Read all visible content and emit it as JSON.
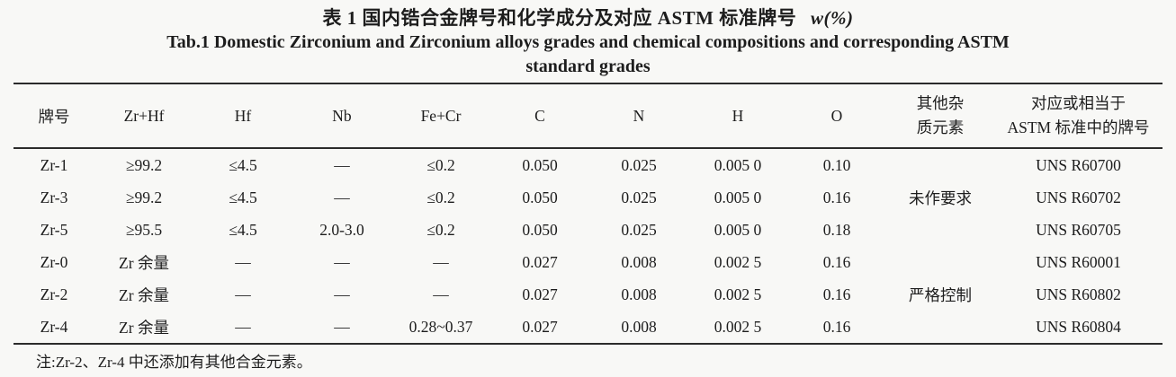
{
  "titles": {
    "chinese": "表 1 国内锆合金牌号和化学成分及对应 ASTM 标准牌号",
    "unit": "w(%)",
    "english_line1": "Tab.1 Domestic Zirconium and Zirconium alloys grades and chemical compositions and corresponding ASTM",
    "english_line2": "standard grades"
  },
  "table": {
    "headers": [
      "牌号",
      "Zr+Hf",
      "Hf",
      "Nb",
      "Fe+Cr",
      "C",
      "N",
      "H",
      "O"
    ],
    "header_other": {
      "line1": "其他杂",
      "line2": "质元素"
    },
    "header_astm": {
      "line1": "对应或相当于",
      "line2": "ASTM 标准中的牌号"
    },
    "rows": [
      [
        "Zr-1",
        "≥99.2",
        "≤4.5",
        "—",
        "≤0.2",
        "0.050",
        "0.025",
        "0.005 0",
        "0.10",
        "",
        "UNS R60700"
      ],
      [
        "Zr-3",
        "≥99.2",
        "≤4.5",
        "—",
        "≤0.2",
        "0.050",
        "0.025",
        "0.005 0",
        "0.16",
        "未作要求",
        "UNS R60702"
      ],
      [
        "Zr-5",
        "≥95.5",
        "≤4.5",
        "2.0-3.0",
        "≤0.2",
        "0.050",
        "0.025",
        "0.005 0",
        "0.18",
        "",
        "UNS R60705"
      ],
      [
        "Zr-0",
        "Zr 余量",
        "—",
        "—",
        "—",
        "0.027",
        "0.008",
        "0.002 5",
        "0.16",
        "",
        "UNS R60001"
      ],
      [
        "Zr-2",
        "Zr 余量",
        "—",
        "—",
        "—",
        "0.027",
        "0.008",
        "0.002 5",
        "0.16",
        "严格控制",
        "UNS R60802"
      ],
      [
        "Zr-4",
        "Zr 余量",
        "—",
        "—",
        "0.28~0.37",
        "0.027",
        "0.008",
        "0.002 5",
        "0.16",
        "",
        "UNS R60804"
      ]
    ]
  },
  "note": "注:Zr-2、Zr-4 中还添加有其他合金元素。"
}
